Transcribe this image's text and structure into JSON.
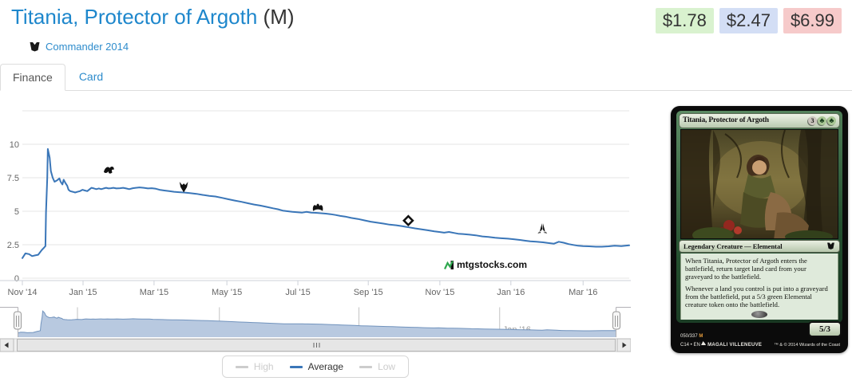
{
  "header": {
    "title": "Titania, Protector of Argoth",
    "rarity_suffix": "(M)",
    "set_label": "Commander 2014"
  },
  "prices": {
    "low": {
      "value": "$1.78",
      "bg": "#d9f2cf"
    },
    "average": {
      "value": "$2.47",
      "bg": "#d3def5"
    },
    "high": {
      "value": "$6.99",
      "bg": "#f6caca"
    }
  },
  "tabs": [
    {
      "label": "Finance",
      "active": true
    },
    {
      "label": "Card",
      "active": false
    }
  ],
  "watermark": {
    "text": "mtgstocks.com"
  },
  "legend": {
    "items": [
      {
        "label": "High",
        "color": "#cccccc",
        "enabled": false
      },
      {
        "label": "Average",
        "color": "#3a76b8",
        "enabled": true
      },
      {
        "label": "Low",
        "color": "#cccccc",
        "enabled": false
      }
    ]
  },
  "chart_data": {
    "type": "line",
    "title": "",
    "xlabel": "",
    "ylabel": "",
    "ylim": [
      0,
      12.5
    ],
    "y_ticks": [
      0,
      2.5,
      5,
      7.5,
      10
    ],
    "grid": true,
    "legend_position": "bottom-center",
    "x_tick_labels": [
      "Nov '14",
      "Jan '15",
      "Mar '15",
      "May '15",
      "Jul '15",
      "Sep '15",
      "Nov '15",
      "Jan '16",
      "Mar '16"
    ],
    "x_tick_t": [
      0,
      0.1,
      0.217,
      0.337,
      0.454,
      0.57,
      0.688,
      0.805,
      0.924
    ],
    "series": [
      {
        "name": "High",
        "visible": false,
        "color": "#cccccc",
        "points": []
      },
      {
        "name": "Average",
        "visible": true,
        "color": "#3a76b8",
        "points": [
          [
            0,
            1.5
          ],
          [
            0.005,
            1.85
          ],
          [
            0.011,
            1.8
          ],
          [
            0.016,
            1.65
          ],
          [
            0.021,
            1.7
          ],
          [
            0.026,
            1.75
          ],
          [
            0.032,
            2.1
          ],
          [
            0.036,
            2.3
          ],
          [
            0.038,
            2.4
          ],
          [
            0.039,
            4.9
          ],
          [
            0.041,
            7.5
          ],
          [
            0.042,
            9.65
          ],
          [
            0.045,
            9.0
          ],
          [
            0.047,
            8.0
          ],
          [
            0.05,
            7.5
          ],
          [
            0.053,
            7.2
          ],
          [
            0.057,
            7.3
          ],
          [
            0.061,
            7.45
          ],
          [
            0.063,
            7.2
          ],
          [
            0.066,
            7.0
          ],
          [
            0.068,
            7.35
          ],
          [
            0.071,
            7.1
          ],
          [
            0.074,
            6.9
          ],
          [
            0.076,
            6.6
          ],
          [
            0.079,
            6.5
          ],
          [
            0.083,
            6.45
          ],
          [
            0.087,
            6.4
          ],
          [
            0.091,
            6.45
          ],
          [
            0.095,
            6.5
          ],
          [
            0.099,
            6.6
          ],
          [
            0.103,
            6.55
          ],
          [
            0.107,
            6.5
          ],
          [
            0.111,
            6.65
          ],
          [
            0.114,
            6.75
          ],
          [
            0.118,
            6.7
          ],
          [
            0.122,
            6.65
          ],
          [
            0.126,
            6.7
          ],
          [
            0.13,
            6.65
          ],
          [
            0.134,
            6.7
          ],
          [
            0.138,
            6.75
          ],
          [
            0.142,
            6.7
          ],
          [
            0.146,
            6.72
          ],
          [
            0.15,
            6.75
          ],
          [
            0.155,
            6.7
          ],
          [
            0.161,
            6.72
          ],
          [
            0.166,
            6.75
          ],
          [
            0.171,
            6.7
          ],
          [
            0.176,
            6.65
          ],
          [
            0.182,
            6.72
          ],
          [
            0.187,
            6.75
          ],
          [
            0.193,
            6.78
          ],
          [
            0.2,
            6.75
          ],
          [
            0.207,
            6.7
          ],
          [
            0.213,
            6.72
          ],
          [
            0.22,
            6.68
          ],
          [
            0.226,
            6.6
          ],
          [
            0.234,
            6.55
          ],
          [
            0.242,
            6.5
          ],
          [
            0.25,
            6.45
          ],
          [
            0.258,
            6.42
          ],
          [
            0.266,
            6.4
          ],
          [
            0.276,
            6.35
          ],
          [
            0.287,
            6.3
          ],
          [
            0.297,
            6.22
          ],
          [
            0.308,
            6.15
          ],
          [
            0.318,
            6.1
          ],
          [
            0.329,
            6.0
          ],
          [
            0.339,
            5.9
          ],
          [
            0.35,
            5.8
          ],
          [
            0.361,
            5.7
          ],
          [
            0.371,
            5.6
          ],
          [
            0.382,
            5.5
          ],
          [
            0.392,
            5.42
          ],
          [
            0.403,
            5.32
          ],
          [
            0.413,
            5.22
          ],
          [
            0.421,
            5.15
          ],
          [
            0.429,
            5.05
          ],
          [
            0.437,
            5.0
          ],
          [
            0.445,
            4.95
          ],
          [
            0.453,
            4.92
          ],
          [
            0.461,
            4.9
          ],
          [
            0.468,
            4.95
          ],
          [
            0.476,
            4.9
          ],
          [
            0.484,
            4.88
          ],
          [
            0.492,
            4.85
          ],
          [
            0.5,
            4.82
          ],
          [
            0.508,
            4.78
          ],
          [
            0.516,
            4.72
          ],
          [
            0.524,
            4.65
          ],
          [
            0.532,
            4.6
          ],
          [
            0.542,
            4.5
          ],
          [
            0.553,
            4.42
          ],
          [
            0.563,
            4.32
          ],
          [
            0.574,
            4.22
          ],
          [
            0.584,
            4.15
          ],
          [
            0.595,
            4.08
          ],
          [
            0.605,
            4.0
          ],
          [
            0.616,
            3.95
          ],
          [
            0.626,
            3.88
          ],
          [
            0.637,
            3.8
          ],
          [
            0.647,
            3.72
          ],
          [
            0.658,
            3.65
          ],
          [
            0.668,
            3.58
          ],
          [
            0.679,
            3.5
          ],
          [
            0.687,
            3.45
          ],
          [
            0.695,
            3.4
          ],
          [
            0.703,
            3.45
          ],
          [
            0.711,
            3.38
          ],
          [
            0.718,
            3.32
          ],
          [
            0.726,
            3.3
          ],
          [
            0.737,
            3.25
          ],
          [
            0.747,
            3.2
          ],
          [
            0.758,
            3.12
          ],
          [
            0.768,
            3.08
          ],
          [
            0.779,
            3.02
          ],
          [
            0.789,
            2.98
          ],
          [
            0.8,
            2.95
          ],
          [
            0.811,
            2.9
          ],
          [
            0.821,
            2.85
          ],
          [
            0.829,
            2.8
          ],
          [
            0.837,
            2.75
          ],
          [
            0.847,
            2.72
          ],
          [
            0.858,
            2.68
          ],
          [
            0.868,
            2.62
          ],
          [
            0.876,
            2.58
          ],
          [
            0.884,
            2.72
          ],
          [
            0.892,
            2.65
          ],
          [
            0.9,
            2.55
          ],
          [
            0.908,
            2.48
          ],
          [
            0.916,
            2.42
          ],
          [
            0.924,
            2.4
          ],
          [
            0.934,
            2.38
          ],
          [
            0.945,
            2.35
          ],
          [
            0.955,
            2.35
          ],
          [
            0.966,
            2.38
          ],
          [
            0.976,
            2.42
          ],
          [
            0.987,
            2.4
          ],
          [
            1,
            2.45
          ]
        ]
      },
      {
        "name": "Low",
        "visible": false,
        "color": "#cccccc",
        "points": []
      }
    ],
    "set_release_markers": [
      {
        "name": "fate-reforged",
        "t": 0.143,
        "value": 8.1
      },
      {
        "name": "dragons-of-tarkir",
        "t": 0.266,
        "value": 6.8
      },
      {
        "name": "magic-origins",
        "t": 0.487,
        "value": 5.3
      },
      {
        "name": "battle-for-zendikar",
        "t": 0.636,
        "value": 4.3
      },
      {
        "name": "oath-of-the-gatewatch",
        "t": 0.857,
        "value": 3.7
      }
    ],
    "navigator": {
      "labels": [
        "Jan '15",
        "May '15",
        "Sep '15",
        "Jan '16"
      ],
      "label_t": [
        0.1,
        0.337,
        0.57,
        0.805
      ],
      "selected_range": "full"
    }
  },
  "card": {
    "name": "Titania, Protector of Argoth",
    "mana_generic": "3",
    "type_line": "Legendary Creature — Elemental",
    "rules_text": [
      "When Titania, Protector of Argoth enters the battlefield, return target land card from your graveyard to the battlefield.",
      "Whenever a land you control is put into a graveyard from the battlefield, put a 5/3 green Elemental creature token onto the battlefield."
    ],
    "power_toughness": "5/3",
    "collector_number": "050/337",
    "collector_rarity": "M",
    "set_code_line": "C14 • EN",
    "artist": "Magali Villeneuve",
    "copyright": "™ & © 2014 Wizards of the Coast"
  }
}
